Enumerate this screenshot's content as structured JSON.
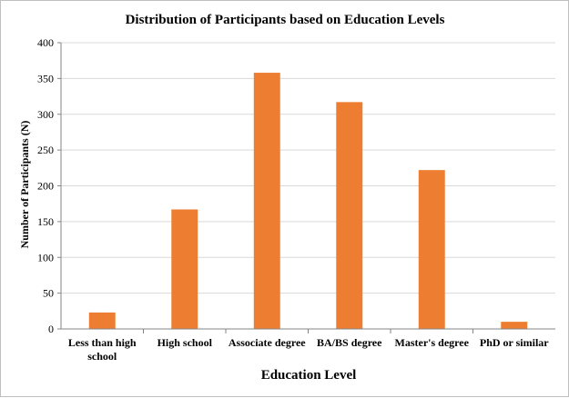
{
  "chart_data": {
    "type": "bar",
    "title": "Distribution of Participants based on Education Levels",
    "xlabel": "Education Level",
    "ylabel": "Number of Participants (N)",
    "categories": [
      [
        "Less than high",
        "school"
      ],
      [
        "High school"
      ],
      [
        "Associate degree"
      ],
      [
        "BA/BS degree"
      ],
      [
        "Master's degree"
      ],
      [
        "PhD or similar"
      ]
    ],
    "values": [
      23,
      167,
      358,
      317,
      222,
      10
    ],
    "ylim": [
      0,
      400
    ],
    "yticks": [
      0,
      50,
      100,
      150,
      200,
      250,
      300,
      350,
      400
    ],
    "grid": true,
    "legend": "none",
    "colors": {
      "bar": "#ED7D31",
      "grid": "#d9d9d9",
      "axis": "#868686"
    }
  }
}
